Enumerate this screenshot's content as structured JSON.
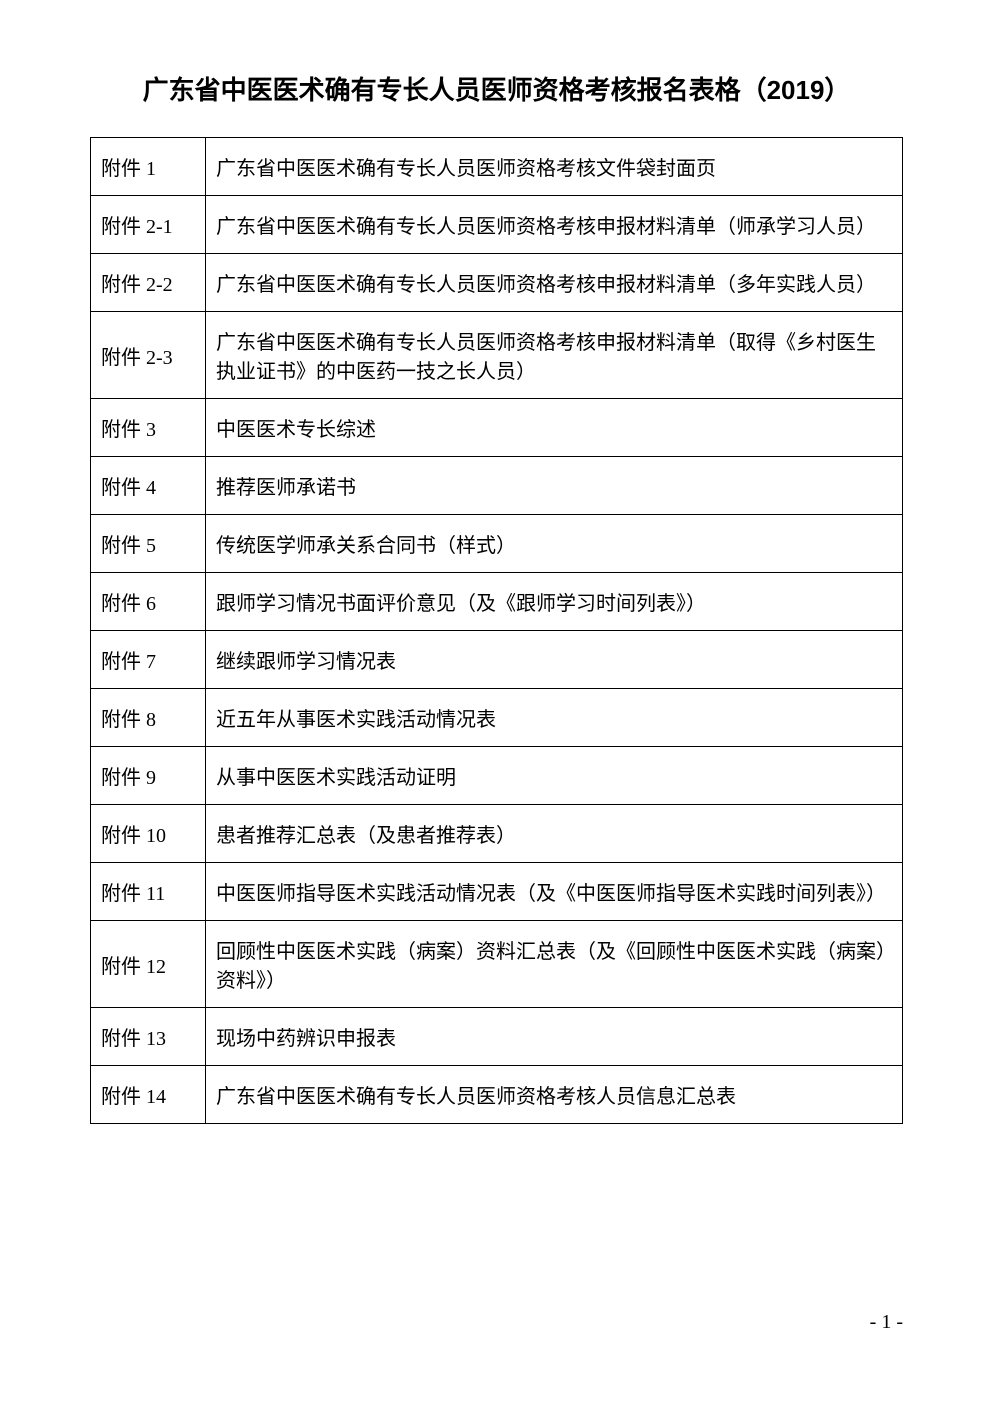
{
  "title": "广东省中医医术确有专长人员医师资格考核报名表格（2019）",
  "rows": [
    {
      "label": "附件 1",
      "desc": "广东省中医医术确有专长人员医师资格考核文件袋封面页"
    },
    {
      "label": "附件 2-1",
      "desc": "广东省中医医术确有专长人员医师资格考核申报材料清单（师承学习人员）"
    },
    {
      "label": "附件 2-2",
      "desc": "广东省中医医术确有专长人员医师资格考核申报材料清单（多年实践人员）"
    },
    {
      "label": "附件 2-3",
      "desc": "广东省中医医术确有专长人员医师资格考核申报材料清单（取得《乡村医生执业证书》的中医药一技之长人员）"
    },
    {
      "label": "附件 3",
      "desc": "中医医术专长综述"
    },
    {
      "label": "附件 4",
      "desc": "推荐医师承诺书"
    },
    {
      "label": "附件 5",
      "desc": "传统医学师承关系合同书（样式）"
    },
    {
      "label": "附件 6",
      "desc": "跟师学习情况书面评价意见（及《跟师学习时间列表》）"
    },
    {
      "label": "附件 7",
      "desc": "继续跟师学习情况表"
    },
    {
      "label": "附件 8",
      "desc": "近五年从事医术实践活动情况表"
    },
    {
      "label": "附件 9",
      "desc": "从事中医医术实践活动证明"
    },
    {
      "label": "附件 10",
      "desc": "患者推荐汇总表（及患者推荐表）"
    },
    {
      "label": "附件 11",
      "desc": "中医医师指导医术实践活动情况表（及《中医医师指导医术实践时间列表》）"
    },
    {
      "label": "附件 12",
      "desc": "回顾性中医医术实践（病案）资料汇总表（及《回顾性中医医术实践（病案）资料》）"
    },
    {
      "label": "附件 13",
      "desc": "现场中药辨识申报表"
    },
    {
      "label": "附件 14",
      "desc": "广东省中医医术确有专长人员医师资格考核人员信息汇总表"
    }
  ],
  "page_number": "- 1 -",
  "style": {
    "font_family_title": "SimHei",
    "font_family_body": "SimSun",
    "title_fontsize": 26,
    "cell_fontsize": 20,
    "border_color": "#000000",
    "background_color": "#ffffff",
    "text_color": "#000000",
    "label_column_width": 115
  }
}
